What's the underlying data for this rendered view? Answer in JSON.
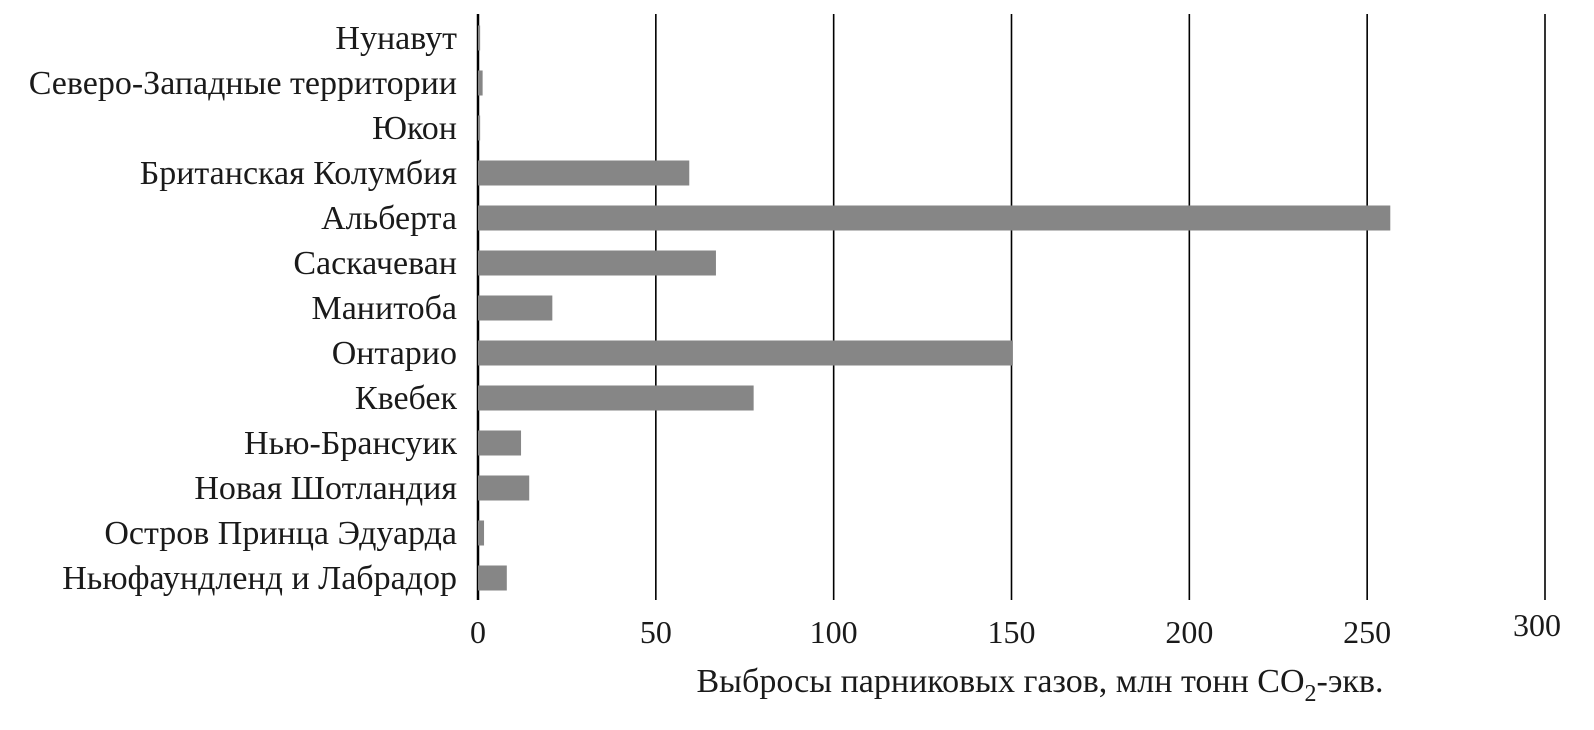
{
  "chart_data": {
    "type": "bar",
    "orientation": "horizontal",
    "categories": [
      "Нунавут",
      "Северо-Западные территории",
      "Юкон",
      "Британская Колумбия",
      "Альберта",
      "Саскачеван",
      "Манитоба",
      "Онтарио",
      "Квебек",
      "Нью-Брансуик",
      "Новая Шотландия",
      "Остров Принца Эдуарда",
      "Ньюфаундленд и Лабрадор"
    ],
    "values": [
      0.6,
      1.3,
      0.6,
      59.4,
      256.5,
      66.9,
      20.9,
      150.4,
      77.5,
      12.1,
      14.4,
      1.7,
      8.1
    ],
    "xlim": [
      0,
      300
    ],
    "xticks": [
      0,
      50,
      100,
      150,
      200,
      250,
      300
    ],
    "xlabel": "Выбросы парниковых газов, млн тонн CO",
    "xlabel_subscript": "2",
    "xlabel_suffix": "-экв.",
    "grid": "vertical",
    "bar_color": "#868686",
    "grid_color": "#000000"
  }
}
